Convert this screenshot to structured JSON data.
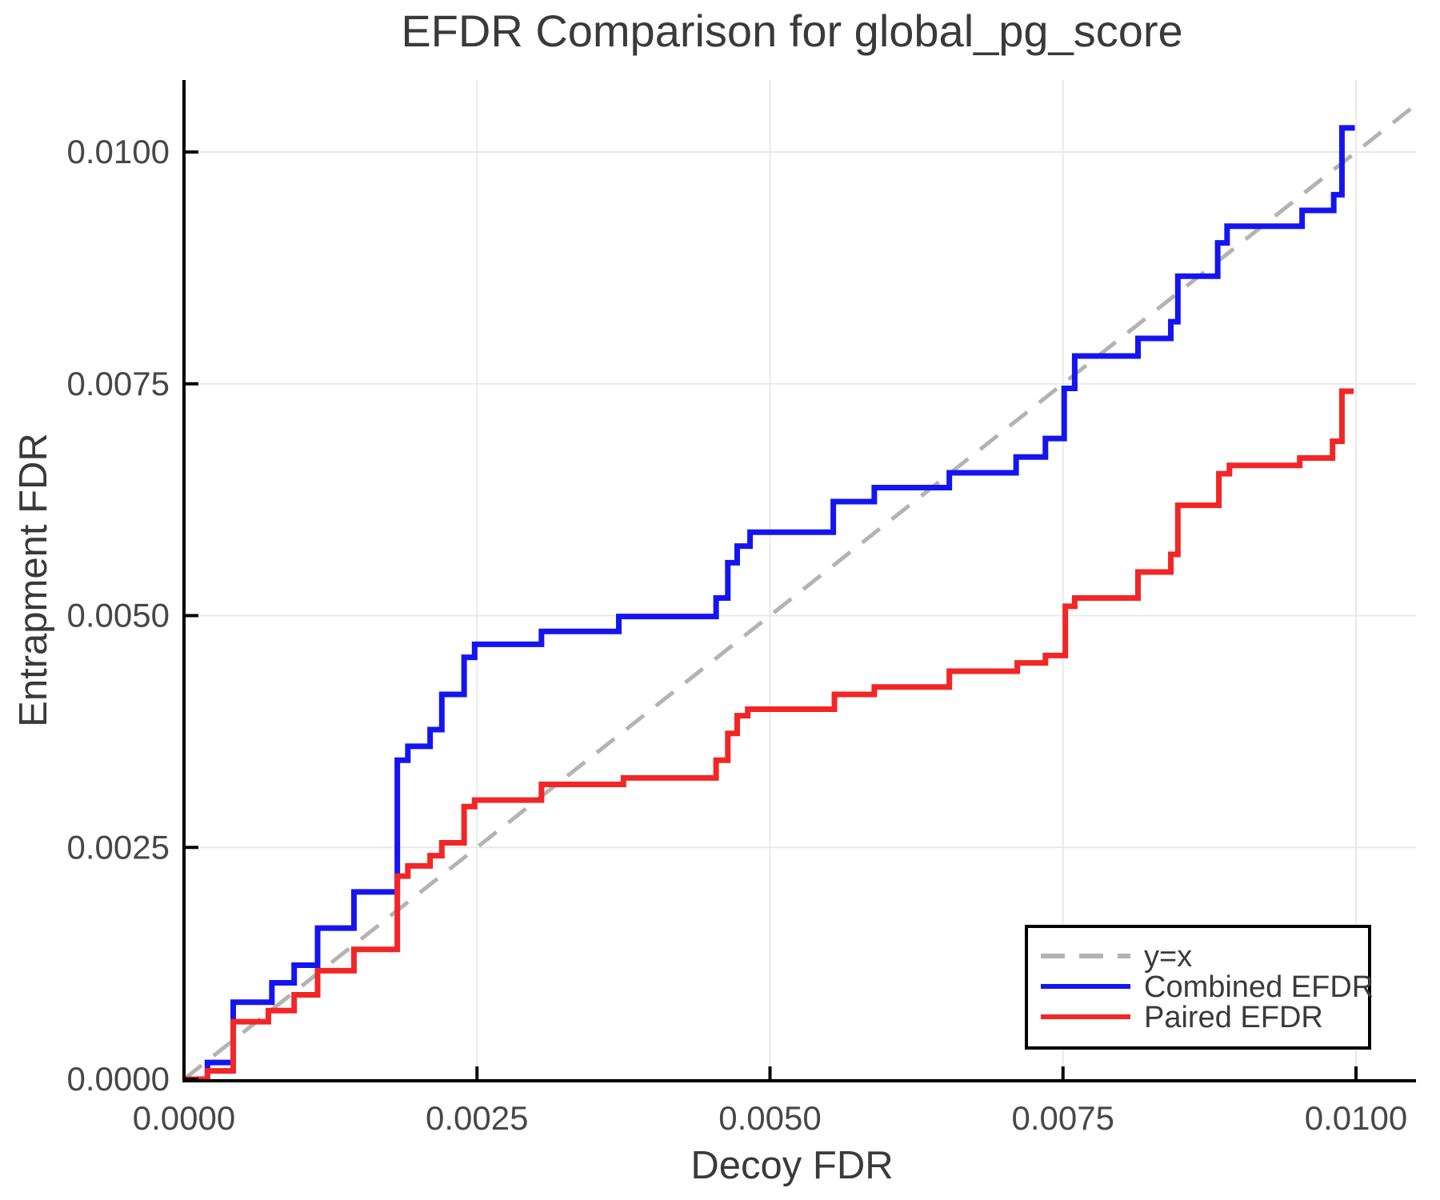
{
  "chart_data": {
    "type": "line",
    "subtype": "step",
    "step_interpolation": "h-then-v",
    "title": "EFDR Comparison for global_pg_score",
    "xlabel": "Decoy FDR",
    "ylabel": "Entrapment FDR",
    "xlim": [
      0.0,
      0.01051
    ],
    "ylim": [
      0.0,
      0.01078
    ],
    "grid": true,
    "background": "#ffffff",
    "xticks": {
      "values": [
        0.0,
        0.0025,
        0.005,
        0.0075,
        0.01
      ],
      "labels": [
        "0.0000",
        "0.0025",
        "0.0050",
        "0.0075",
        "0.0100"
      ]
    },
    "yticks": {
      "values": [
        0.0,
        0.0025,
        0.005,
        0.0075,
        0.01
      ],
      "labels": [
        "0.0000",
        "0.0025",
        "0.0050",
        "0.0075",
        "0.0100"
      ]
    },
    "legend": {
      "position": "bottom-right",
      "border_color": "#000000",
      "background": "#ffffff",
      "entries": [
        {
          "label": "y=x",
          "color": "#b3b3b3",
          "dash": true
        },
        {
          "label": "Combined EFDR",
          "color": "#1515ef",
          "dash": false
        },
        {
          "label": "Paired EFDR",
          "color": "#f22626",
          "dash": false
        }
      ]
    },
    "series": [
      {
        "name": "y=x",
        "color": "#b3b3b3",
        "dash": true,
        "step": false,
        "points": [
          [
            0.0,
            0.0
          ],
          [
            0.01051,
            0.01051
          ]
        ]
      },
      {
        "name": "Combined EFDR",
        "color": "#1515ef",
        "dash": false,
        "step": true,
        "points": [
          [
            0.0,
            0.0
          ],
          [
            0.0002,
            0.00018
          ],
          [
            0.00042,
            0.00083
          ],
          [
            0.00075,
            0.00104
          ],
          [
            0.00094,
            0.00123
          ],
          [
            0.00114,
            0.00163
          ],
          [
            0.00145,
            0.00202
          ],
          [
            0.00182,
            0.00344
          ],
          [
            0.00191,
            0.00359
          ],
          [
            0.0021,
            0.00377
          ],
          [
            0.0022,
            0.00415
          ],
          [
            0.00239,
            0.00455
          ],
          [
            0.00248,
            0.00469
          ],
          [
            0.00305,
            0.00483
          ],
          [
            0.00371,
            0.00499
          ],
          [
            0.00454,
            0.00519
          ],
          [
            0.00464,
            0.00557
          ],
          [
            0.00472,
            0.00575
          ],
          [
            0.00483,
            0.0059
          ],
          [
            0.00554,
            0.00623
          ],
          [
            0.00589,
            0.00638
          ],
          [
            0.00653,
            0.00654
          ],
          [
            0.0071,
            0.00671
          ],
          [
            0.00735,
            0.00691
          ],
          [
            0.00751,
            0.00745
          ],
          [
            0.0076,
            0.0078
          ],
          [
            0.00814,
            0.00799
          ],
          [
            0.00842,
            0.00817
          ],
          [
            0.00848,
            0.00866
          ],
          [
            0.00882,
            0.00902
          ],
          [
            0.0089,
            0.0092
          ],
          [
            0.00954,
            0.00937
          ],
          [
            0.00981,
            0.00954
          ],
          [
            0.00988,
            0.01026
          ],
          [
            0.00999,
            0.01026
          ]
        ]
      },
      {
        "name": "Paired EFDR",
        "color": "#f22626",
        "dash": false,
        "step": true,
        "points": [
          [
            0.0,
            0.0
          ],
          [
            0.0002,
            9e-05
          ],
          [
            0.00042,
            0.00062
          ],
          [
            0.00072,
            0.00074
          ],
          [
            0.00094,
            0.00091
          ],
          [
            0.00114,
            0.00117
          ],
          [
            0.00145,
            0.0014
          ],
          [
            0.00182,
            0.00219
          ],
          [
            0.00191,
            0.0023
          ],
          [
            0.0021,
            0.00241
          ],
          [
            0.0022,
            0.00255
          ],
          [
            0.00239,
            0.00294
          ],
          [
            0.00248,
            0.00301
          ],
          [
            0.00305,
            0.00318
          ],
          [
            0.00375,
            0.00325
          ],
          [
            0.00454,
            0.00344
          ],
          [
            0.00464,
            0.00373
          ],
          [
            0.00472,
            0.00392
          ],
          [
            0.00481,
            0.00399
          ],
          [
            0.00555,
            0.00415
          ],
          [
            0.00589,
            0.00423
          ],
          [
            0.00653,
            0.0044
          ],
          [
            0.00711,
            0.00449
          ],
          [
            0.00735,
            0.00457
          ],
          [
            0.00752,
            0.0051
          ],
          [
            0.0076,
            0.00519
          ],
          [
            0.00814,
            0.00547
          ],
          [
            0.00842,
            0.00566
          ],
          [
            0.00848,
            0.00619
          ],
          [
            0.00883,
            0.00653
          ],
          [
            0.00892,
            0.00662
          ],
          [
            0.00952,
            0.0067
          ],
          [
            0.0098,
            0.00688
          ],
          [
            0.00988,
            0.00742
          ],
          [
            0.00998,
            0.00742
          ]
        ]
      }
    ],
    "style_colors": {
      "grid": "#e9e9e9",
      "spine": "#000000",
      "tick": "#000000",
      "title_text": "#3a3a3a",
      "tick_text": "#474747",
      "diagonal": "#b3b3b3",
      "combined": "#1515ef",
      "paired": "#f22626"
    }
  }
}
